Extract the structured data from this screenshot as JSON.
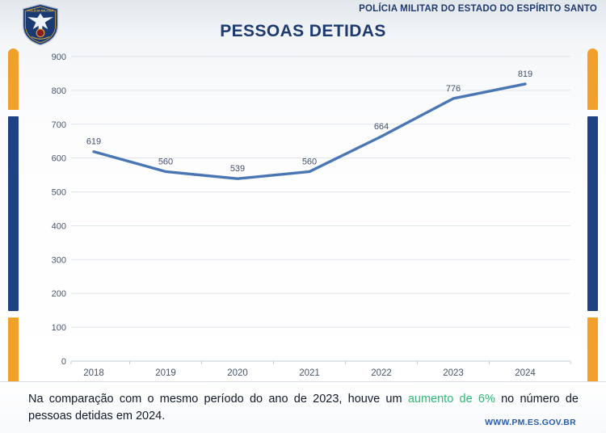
{
  "header": {
    "org_name": "POLÍCIA MILITAR DO ESTADO DO ESPÍRITO SANTO",
    "logo": "pmes-eagle-shield-badge"
  },
  "title": "PESSOAS DETIDAS",
  "chart_data": {
    "type": "line",
    "title": "PESSOAS DETIDAS",
    "categories": [
      "2018",
      "2019",
      "2020",
      "2021",
      "2022",
      "2023",
      "2024"
    ],
    "values": [
      619,
      560,
      539,
      560,
      664,
      776,
      819
    ],
    "xlabel": "",
    "ylabel": "",
    "ylim": [
      0,
      900
    ],
    "ytick_step": 100,
    "yticks": [
      0,
      100,
      200,
      300,
      400,
      500,
      600,
      700,
      800,
      900
    ],
    "grid": true,
    "legend_position": "none",
    "data_labels": true,
    "line_color": "#4a77b4",
    "value_label_color": "#42506a",
    "axis_label_color": "#49566b",
    "gridline_color": "#dfe5ec"
  },
  "footnote": {
    "text_before": "Na comparação com o mesmo período do ano de 2023, houve um ",
    "highlight": "aumento de 6%",
    "text_after": " no número de pessoas detidas em 2024."
  },
  "footer": {
    "website": "WWW.PM.ES.GOV.BR"
  },
  "colors": {
    "accent_orange": "#f0a02b",
    "accent_blue": "#1e4283",
    "title_navy": "#1e3a6e",
    "highlight_green": "#2fb873"
  }
}
